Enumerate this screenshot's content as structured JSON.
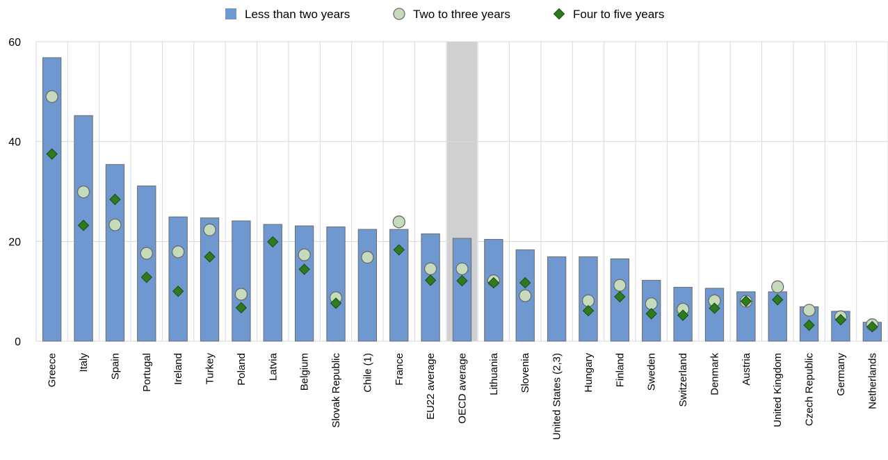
{
  "chart_data": {
    "type": "bar",
    "title": "",
    "xlabel": "",
    "ylabel": "",
    "ylim": [
      0,
      60
    ],
    "yticks": [
      0,
      20,
      40,
      60
    ],
    "grid": true,
    "legend_position": "top-center",
    "highlighted_category": "OECD average",
    "colors": {
      "bar_fill": "#6f98d0",
      "bar_stroke": "#6b6b6b",
      "circle_fill": "#c6dbbb",
      "circle_stroke": "#6b6b6b",
      "diamond_fill": "#2e7a1f",
      "diamond_stroke": "#1a4a12",
      "grid": "#d9d9d9",
      "highlight_band": "#d0d0d0"
    },
    "categories": [
      "Greece",
      "Italy",
      "Spain",
      "Portugal",
      "Ireland",
      "Turkey",
      "Poland",
      "Latvia",
      "Belgium",
      "Slovak Republic",
      "Chile (1)",
      "France",
      "EU22 average",
      "OECD average",
      "Lithuania",
      "Slovenia",
      "United States (2,3)",
      "Hungary",
      "Finland",
      "Sweden",
      "Switzerland",
      "Denmark",
      "Austria",
      "United Kingdom",
      "Czech Republic",
      "Germany",
      "Netherlands"
    ],
    "series": [
      {
        "name": "Less than two years",
        "marker": "bar",
        "values": [
          56.8,
          45.2,
          35.4,
          31.1,
          24.9,
          24.7,
          24.1,
          23.4,
          23.1,
          22.9,
          22.4,
          22.4,
          21.5,
          20.6,
          20.4,
          18.3,
          16.9,
          16.9,
          16.5,
          12.2,
          10.8,
          10.6,
          9.9,
          9.9,
          6.9,
          6.0,
          3.8
        ]
      },
      {
        "name": "Two to three years",
        "marker": "circle",
        "values": [
          49.0,
          29.9,
          23.3,
          17.6,
          17.9,
          22.3,
          9.4,
          null,
          17.3,
          8.7,
          16.8,
          23.9,
          14.5,
          14.5,
          12.1,
          9.1,
          null,
          8.1,
          11.2,
          7.5,
          6.4,
          8.1,
          8.0,
          10.9,
          6.2,
          4.9,
          3.3
        ]
      },
      {
        "name": "Four to five years",
        "marker": "diamond",
        "values": [
          37.5,
          23.2,
          28.4,
          12.8,
          10.0,
          16.9,
          6.7,
          19.9,
          14.4,
          7.6,
          null,
          18.3,
          12.2,
          12.1,
          11.7,
          11.7,
          null,
          6.1,
          8.9,
          5.5,
          5.2,
          6.6,
          8.0,
          8.3,
          3.2,
          4.3,
          2.9
        ]
      }
    ]
  }
}
